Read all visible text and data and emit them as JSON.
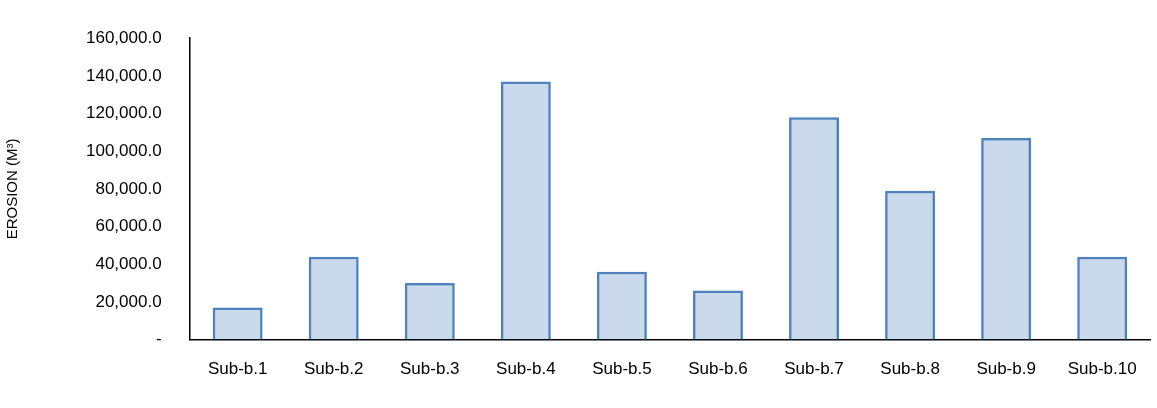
{
  "chart_data": {
    "type": "bar",
    "ylabel": "EROSION (M³)",
    "categories": [
      "Sub-b.1",
      "Sub-b.2",
      "Sub-b.3",
      "Sub-b.4",
      "Sub-b.5",
      "Sub-b.6",
      "Sub-b.7",
      "Sub-b.8",
      "Sub-b.9",
      "Sub-b.10"
    ],
    "values": [
      17000,
      44000,
      30000,
      137000,
      36000,
      26000,
      118000,
      79000,
      107000,
      44000
    ],
    "color": "#4f81bd",
    "ylim": [
      0,
      160000
    ],
    "yticks": [
      {
        "value": 0,
        "label": "-"
      },
      {
        "value": 20000,
        "label": "20,000.0"
      },
      {
        "value": 40000,
        "label": "40,000.0"
      },
      {
        "value": 60000,
        "label": "60,000.0"
      },
      {
        "value": 80000,
        "label": "80,000.0"
      },
      {
        "value": 100000,
        "label": "100,000.0"
      },
      {
        "value": 120000,
        "label": "120,000.0"
      },
      {
        "value": 140000,
        "label": "140,000.0"
      },
      {
        "value": 160000,
        "label": "160,000.0"
      }
    ],
    "grid": false,
    "legend": false
  }
}
